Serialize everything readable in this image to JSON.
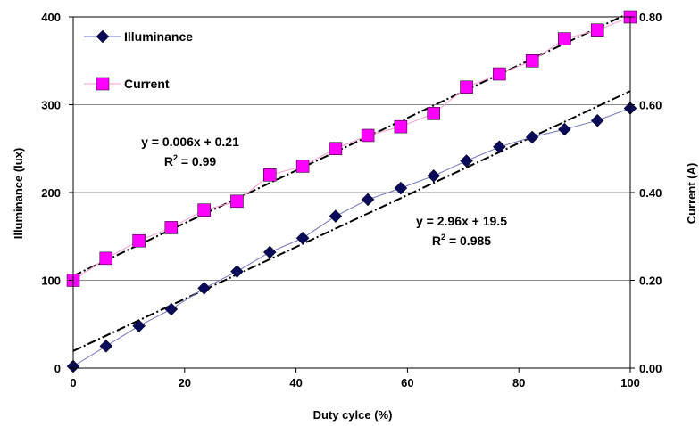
{
  "chart_data": {
    "type": "line",
    "xlabel": "Duty cylce (%)",
    "ylabel_left": "Illuminance (lux)",
    "ylabel_right": "Current (A)",
    "xlim": [
      0,
      100
    ],
    "ylim_left": [
      0,
      400
    ],
    "ylim_right": [
      0.0,
      0.8
    ],
    "x_ticks": [
      "0",
      "20",
      "40",
      "60",
      "80",
      "100"
    ],
    "y_left_ticks": [
      "0",
      "100",
      "200",
      "300",
      "400"
    ],
    "y_right_ticks": [
      "0.00",
      "0.20",
      "0.40",
      "0.60",
      "0.80"
    ],
    "grid": "horizontal",
    "legend_position": "top-left",
    "x": [
      0,
      5.9,
      11.8,
      17.6,
      23.5,
      29.4,
      35.3,
      41.2,
      47.1,
      52.9,
      58.8,
      64.7,
      70.6,
      76.5,
      82.4,
      88.2,
      94.1,
      100
    ],
    "series": [
      {
        "name": "Illuminance",
        "axis": "left",
        "color": "#0a0a5a",
        "line_color": "#6f74c0",
        "marker": "diamond",
        "values": [
          2,
          25,
          48,
          67,
          91,
          110,
          132,
          148,
          173,
          192,
          205,
          219,
          236,
          252,
          263,
          272,
          282,
          296
        ]
      },
      {
        "name": "Current",
        "axis": "right",
        "color": "#ff00ff",
        "line_color": "#ff9ad8",
        "marker": "square",
        "values": [
          0.2,
          0.25,
          0.29,
          0.32,
          0.36,
          0.38,
          0.44,
          0.46,
          0.5,
          0.53,
          0.55,
          0.58,
          0.64,
          0.67,
          0.7,
          0.75,
          0.77,
          0.8
        ]
      }
    ],
    "trendlines": [
      {
        "series": "Illuminance",
        "axis": "left",
        "slope": 2.96,
        "intercept": 19.5,
        "equation": "y = 2.96x + 19.5",
        "r2_label": "R",
        "r2_sup": "2",
        "r2_value": " = 0.985"
      },
      {
        "series": "Current",
        "axis": "right",
        "slope": 0.006,
        "intercept": 0.21,
        "equation": "y = 0.006x + 0.21",
        "r2_label": "R",
        "r2_sup": "2",
        "r2_value": " = 0.99"
      }
    ]
  }
}
